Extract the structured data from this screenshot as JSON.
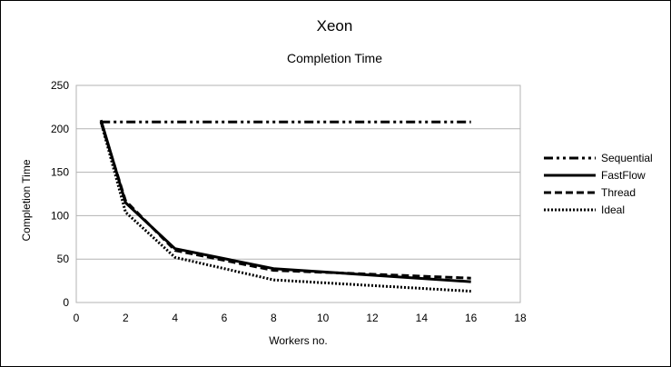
{
  "title": "Xeon",
  "chart_data": {
    "type": "line",
    "title": "Completion Time",
    "xlabel": "Workers no.",
    "ylabel": "Completion Time",
    "xlim": [
      0,
      18
    ],
    "ylim": [
      0,
      250
    ],
    "xticks": [
      0,
      2,
      4,
      6,
      8,
      10,
      12,
      14,
      16,
      18
    ],
    "yticks": [
      0,
      50,
      100,
      150,
      200,
      250
    ],
    "grid": "horizontal",
    "legend_position": "right",
    "series": [
      {
        "name": "Sequential",
        "style": "dash-dot-dot",
        "x": [
          1,
          16
        ],
        "values": [
          208,
          208
        ]
      },
      {
        "name": "FastFlow",
        "style": "solid",
        "x": [
          1,
          2,
          4,
          8,
          16
        ],
        "values": [
          210,
          115,
          62,
          39,
          24
        ]
      },
      {
        "name": "Thread",
        "style": "dashed",
        "x": [
          1,
          2,
          4,
          8,
          16
        ],
        "values": [
          208,
          117,
          60,
          37,
          28
        ]
      },
      {
        "name": "Ideal",
        "style": "dotted",
        "x": [
          1,
          2,
          4,
          8,
          16
        ],
        "values": [
          208,
          104,
          52,
          26,
          13
        ]
      }
    ]
  }
}
